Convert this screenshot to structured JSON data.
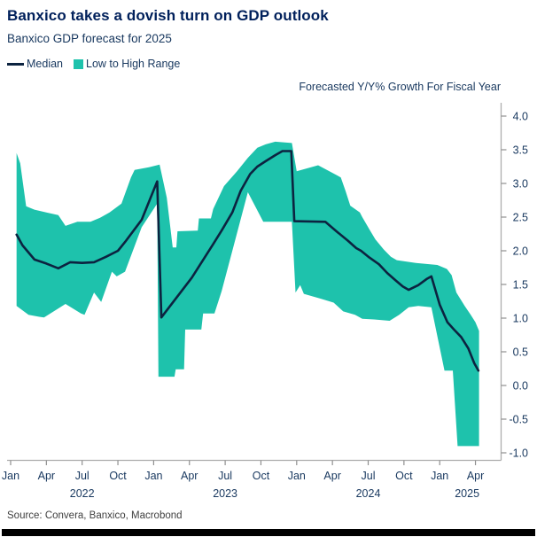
{
  "header": {
    "title": "Banxico takes a dovish turn on GDP outlook",
    "subtitle": "Banxico GDP forecast for 2025"
  },
  "legend": {
    "items": [
      {
        "label": "Median",
        "swatch": "line",
        "color": "#0C2340"
      },
      {
        "label": "Low to High Range",
        "swatch": "square",
        "color": "#1EC2AC"
      }
    ]
  },
  "source": {
    "text": "Source: Convera, Banxico, Macrobond"
  },
  "colors": {
    "band_teal": "#1EC2AC",
    "median_navy": "#0C2340",
    "title_navy": "#00205B",
    "label_navy": "#17375E",
    "axis_gray": "#ADADAD",
    "footer_black": "#000000"
  },
  "chart_data": {
    "type": "line",
    "axis_title": "Forecasted Y/Y% Growth For Fiscal Year",
    "x_unit": "months since Jan 2022 (0 = Jan 2022)",
    "ylim": [
      -1.0,
      4.0
    ],
    "grid": false,
    "legend_position": "top-left",
    "y_axis_side": "right",
    "y_ticks": [
      "4.0",
      "3.5",
      "3.0",
      "2.5",
      "2.0",
      "1.5",
      "1.0",
      "0.5",
      "0.0",
      "-0.5",
      "-1.0"
    ],
    "x_ticks": [
      {
        "m": 0,
        "label": "Jan"
      },
      {
        "m": 3,
        "label": "Apr"
      },
      {
        "m": 6,
        "label": "Jul"
      },
      {
        "m": 9,
        "label": "Oct"
      },
      {
        "m": 12,
        "label": "Jan"
      },
      {
        "m": 15,
        "label": "Apr"
      },
      {
        "m": 18,
        "label": "Jul"
      },
      {
        "m": 21,
        "label": "Oct"
      },
      {
        "m": 24,
        "label": "Jan"
      },
      {
        "m": 27,
        "label": "Apr"
      },
      {
        "m": 30,
        "label": "Jul"
      },
      {
        "m": 33,
        "label": "Oct"
      },
      {
        "m": 36,
        "label": "Jan"
      },
      {
        "m": 39,
        "label": "Apr"
      }
    ],
    "year_labels": [
      {
        "m": 6,
        "label": "2022"
      },
      {
        "m": 18,
        "label": "2023"
      },
      {
        "m": 30,
        "label": "2024"
      },
      {
        "m": 38.3,
        "label": "2025"
      }
    ],
    "series": [
      {
        "name": "Median",
        "style": "line",
        "color": "#0C2340",
        "points": [
          [
            0.5,
            2.24
          ],
          [
            1,
            2.08
          ],
          [
            2,
            1.87
          ],
          [
            3,
            1.81
          ],
          [
            4,
            1.74
          ],
          [
            5,
            1.83
          ],
          [
            6,
            1.82
          ],
          [
            7,
            1.83
          ],
          [
            8,
            1.91
          ],
          [
            9,
            2.0
          ],
          [
            9.6,
            2.13
          ],
          [
            11,
            2.46
          ],
          [
            12.3,
            3.03
          ],
          [
            12.65,
            1.01
          ],
          [
            15.2,
            1.6
          ],
          [
            17,
            2.1
          ],
          [
            17.7,
            2.3
          ],
          [
            18.6,
            2.57
          ],
          [
            19.3,
            2.89
          ],
          [
            20.1,
            3.14
          ],
          [
            20.7,
            3.25
          ],
          [
            21.4,
            3.33
          ],
          [
            22.2,
            3.42
          ],
          [
            22.8,
            3.48
          ],
          [
            23.55,
            3.48
          ],
          [
            23.8,
            2.44
          ],
          [
            26.4,
            2.43
          ],
          [
            27.4,
            2.28
          ],
          [
            28.3,
            2.15
          ],
          [
            29,
            2.04
          ],
          [
            29.4,
            2.0
          ],
          [
            30.1,
            1.9
          ],
          [
            30.9,
            1.8
          ],
          [
            31.6,
            1.67
          ],
          [
            32.3,
            1.56
          ],
          [
            32.9,
            1.47
          ],
          [
            33.4,
            1.42
          ],
          [
            34.2,
            1.49
          ],
          [
            34.9,
            1.58
          ],
          [
            35.3,
            1.62
          ],
          [
            36,
            1.2
          ],
          [
            36.65,
            0.94
          ],
          [
            37.2,
            0.83
          ],
          [
            37.8,
            0.72
          ],
          [
            38.4,
            0.55
          ],
          [
            38.9,
            0.33
          ],
          [
            39.25,
            0.22
          ]
        ]
      },
      {
        "name": "Low to High Range",
        "style": "band",
        "color": "#1EC2AC",
        "high": [
          [
            0.5,
            3.45
          ],
          [
            0.8,
            3.3
          ],
          [
            1.3,
            2.66
          ],
          [
            2,
            2.61
          ],
          [
            3,
            2.57
          ],
          [
            4,
            2.53
          ],
          [
            4.6,
            2.37
          ],
          [
            5.6,
            2.43
          ],
          [
            6.7,
            2.43
          ],
          [
            7.5,
            2.49
          ],
          [
            8.3,
            2.57
          ],
          [
            9.3,
            2.7
          ],
          [
            10.1,
            3.09
          ],
          [
            10.4,
            3.2
          ],
          [
            11.6,
            3.24
          ],
          [
            12.5,
            3.28
          ],
          [
            13.1,
            2.79
          ],
          [
            13.6,
            2.05
          ],
          [
            13.9,
            2.05
          ],
          [
            14,
            2.29
          ],
          [
            15.7,
            2.3
          ],
          [
            15.8,
            2.48
          ],
          [
            16.8,
            2.48
          ],
          [
            17,
            2.62
          ],
          [
            17.9,
            2.96
          ],
          [
            19,
            3.18
          ],
          [
            19.9,
            3.38
          ],
          [
            20.7,
            3.53
          ],
          [
            21.4,
            3.58
          ],
          [
            22.2,
            3.62
          ],
          [
            23.6,
            3.6
          ],
          [
            24,
            3.18
          ],
          [
            25.8,
            3.27
          ],
          [
            27.7,
            3.09
          ],
          [
            28.1,
            2.89
          ],
          [
            28.5,
            2.67
          ],
          [
            29.3,
            2.57
          ],
          [
            29.5,
            2.5
          ],
          [
            30.1,
            2.32
          ],
          [
            30.6,
            2.17
          ],
          [
            31.3,
            2.02
          ],
          [
            31.9,
            1.91
          ],
          [
            32.4,
            1.86
          ],
          [
            34,
            1.82
          ],
          [
            35.8,
            1.79
          ],
          [
            36.6,
            1.73
          ],
          [
            37,
            1.64
          ],
          [
            37.4,
            1.38
          ],
          [
            38.1,
            1.18
          ],
          [
            38.6,
            1.05
          ],
          [
            39,
            0.94
          ],
          [
            39.3,
            0.81
          ]
        ],
        "low": [
          [
            0.5,
            1.18
          ],
          [
            1.5,
            1.05
          ],
          [
            2.4,
            1.02
          ],
          [
            2.8,
            1.01
          ],
          [
            4.6,
            1.21
          ],
          [
            5.9,
            1.07
          ],
          [
            6.2,
            1.05
          ],
          [
            7,
            1.38
          ],
          [
            7.6,
            1.24
          ],
          [
            8.5,
            1.69
          ],
          [
            8.9,
            1.62
          ],
          [
            9.6,
            1.69
          ],
          [
            11,
            2.35
          ],
          [
            12.3,
            2.7
          ],
          [
            12.4,
            0.13
          ],
          [
            13.75,
            0.13
          ],
          [
            13.85,
            0.24
          ],
          [
            14.55,
            0.24
          ],
          [
            14.65,
            0.83
          ],
          [
            16,
            0.83
          ],
          [
            16.15,
            1.07
          ],
          [
            17.1,
            1.07
          ],
          [
            17.7,
            1.4
          ],
          [
            18.6,
            2.0
          ],
          [
            19.9,
            2.87
          ],
          [
            21.2,
            2.43
          ],
          [
            23.6,
            2.43
          ],
          [
            23.9,
            1.38
          ],
          [
            24.3,
            1.49
          ],
          [
            24.6,
            1.36
          ],
          [
            26,
            1.29
          ],
          [
            27.1,
            1.23
          ],
          [
            27.9,
            1.1
          ],
          [
            28.9,
            1.05
          ],
          [
            29.5,
            0.99
          ],
          [
            30.5,
            0.98
          ],
          [
            31.8,
            0.96
          ],
          [
            32.6,
            1.05
          ],
          [
            33.4,
            1.16
          ],
          [
            34.2,
            1.18
          ],
          [
            35.3,
            1.16
          ],
          [
            36.4,
            0.22
          ],
          [
            37.1,
            0.22
          ],
          [
            37.5,
            -0.9
          ],
          [
            39.3,
            -0.9
          ]
        ]
      }
    ]
  }
}
